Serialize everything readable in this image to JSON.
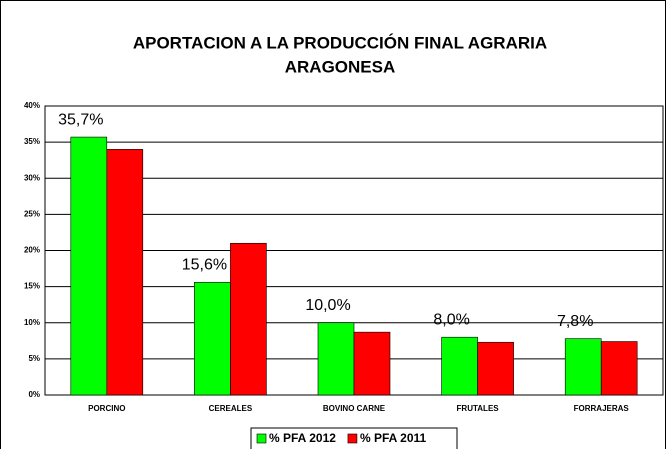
{
  "chart_data": {
    "type": "bar",
    "title": [
      "APORTACION A LA PRODUCCIÓN FINAL AGRARIA",
      "ARAGONESA"
    ],
    "categories": [
      "PORCINO",
      "CEREALES",
      "BOVINO CARNE",
      "FRUTALES",
      "FORRAJERAS"
    ],
    "series": [
      {
        "name": "% PFA 2012",
        "color": "#00ff00",
        "values": [
          35.7,
          15.6,
          10.0,
          8.0,
          7.8
        ],
        "value_labels": [
          "35,7%",
          "15,6%",
          "10,0%",
          "8,0%",
          "7,8%"
        ]
      },
      {
        "name": "% PFA 2011",
        "color": "#ff0000",
        "values": [
          34.0,
          21.0,
          8.7,
          7.3,
          7.4
        ]
      }
    ],
    "ylim": [
      0,
      40
    ],
    "yticks": [
      {
        "value": 0,
        "label": "0%"
      },
      {
        "value": 5,
        "label": "5%"
      },
      {
        "value": 10,
        "label": "10%"
      },
      {
        "value": 15,
        "label": "15%"
      },
      {
        "value": 20,
        "label": "20%"
      },
      {
        "value": 25,
        "label": "25%"
      },
      {
        "value": 30,
        "label": "30%"
      },
      {
        "value": 35,
        "label": "35%"
      },
      {
        "value": 40,
        "label": "40%"
      }
    ],
    "grid": true,
    "legend": "bottom"
  }
}
